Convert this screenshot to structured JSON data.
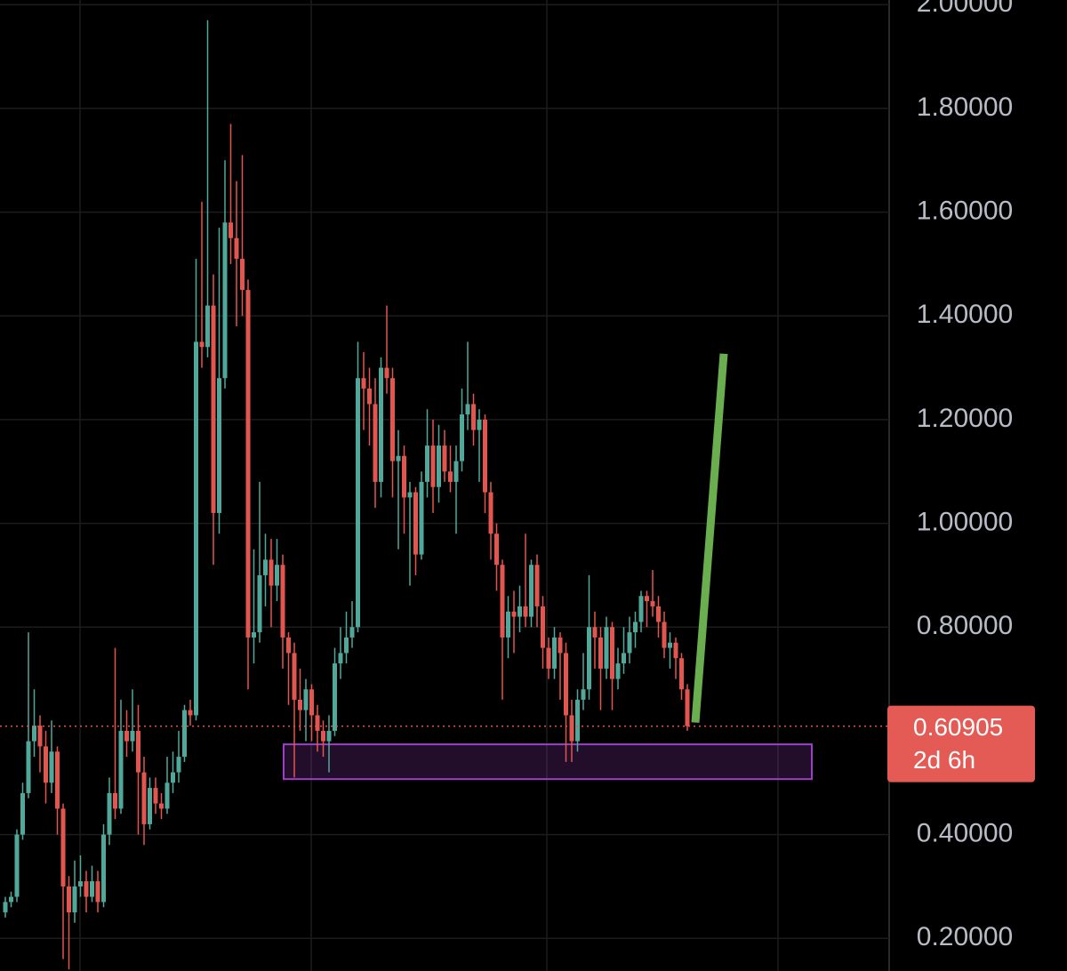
{
  "chart_data": {
    "type": "candlestick",
    "up_color": "#4fa89a",
    "down_color": "#e3554f",
    "grid": true,
    "ylim": [
      0.137,
      2.009
    ],
    "yticks": [
      {
        "value": 0.2,
        "label": "0.20000"
      },
      {
        "value": 0.4,
        "label": "0.40000"
      },
      {
        "value": 0.8,
        "label": "0.80000"
      },
      {
        "value": 1.0,
        "label": "1.00000"
      },
      {
        "value": 1.2,
        "label": "1.20000"
      },
      {
        "value": 1.4,
        "label": "1.40000"
      },
      {
        "value": 1.6,
        "label": "1.60000"
      },
      {
        "value": 1.8,
        "label": "1.80000"
      },
      {
        "value": 2.0,
        "label": "2.00000"
      }
    ],
    "last_price": {
      "value": 0.60905,
      "label": "0.60905"
    },
    "countdown": "2d 6h",
    "zone": {
      "low": 0.507,
      "high": 0.574,
      "color": "#9b3fc4"
    },
    "trend_line": {
      "start": 0.616,
      "end": 1.327,
      "color": "#6aae4f"
    },
    "open": [
      0.25,
      0.27,
      0.28,
      0.4,
      0.48,
      0.58,
      0.61,
      0.57,
      0.5,
      0.56,
      0.45,
      0.3,
      0.25,
      0.3,
      0.31,
      0.28,
      0.31,
      0.27,
      0.4,
      0.48,
      0.45,
      0.6,
      0.58,
      0.6,
      0.52,
      0.42,
      0.49,
      0.46,
      0.45,
      0.5,
      0.52,
      0.55,
      0.64,
      0.63,
      1.35,
      1.34,
      1.42,
      1.02,
      1.28,
      1.58,
      1.55,
      1.51,
      1.45,
      0.78,
      0.79,
      0.9,
      0.93,
      0.88,
      0.92,
      0.78,
      0.75,
      0.66,
      0.64,
      0.68,
      0.63,
      0.6,
      0.58,
      0.6,
      0.73,
      0.75,
      0.78,
      0.8,
      1.28,
      1.26,
      1.23,
      1.08,
      1.3,
      1.28,
      1.12,
      1.13,
      1.05,
      1.06,
      0.94,
      1.08,
      1.15,
      1.07,
      1.15,
      1.1,
      1.08,
      1.12,
      1.21,
      1.23,
      1.18,
      1.2,
      1.06,
      0.98,
      0.92,
      0.78,
      0.83,
      0.82,
      0.84,
      0.82,
      0.92,
      0.84,
      0.76,
      0.72,
      0.78,
      0.75,
      0.63,
      0.58,
      0.66,
      0.68,
      0.8,
      0.78,
      0.72,
      0.8,
      0.7,
      0.73,
      0.75,
      0.79,
      0.81,
      0.86,
      0.85,
      0.84,
      0.81,
      0.76,
      0.77,
      0.74,
      0.68
    ],
    "high": [
      0.28,
      0.29,
      0.41,
      0.5,
      0.79,
      0.68,
      0.63,
      0.6,
      0.62,
      0.57,
      0.46,
      0.32,
      0.35,
      0.36,
      0.33,
      0.34,
      0.33,
      0.42,
      0.51,
      0.76,
      0.66,
      0.64,
      0.68,
      0.65,
      0.55,
      0.51,
      0.51,
      0.48,
      0.55,
      0.56,
      0.6,
      0.65,
      0.66,
      1.51,
      1.62,
      1.97,
      1.48,
      1.57,
      1.7,
      1.77,
      1.66,
      1.71,
      1.47,
      0.95,
      1.08,
      0.98,
      0.97,
      0.97,
      0.94,
      0.79,
      0.77,
      0.72,
      0.7,
      0.69,
      0.65,
      0.62,
      0.63,
      0.76,
      0.8,
      0.83,
      0.85,
      1.35,
      1.33,
      1.3,
      1.28,
      1.32,
      1.42,
      1.3,
      1.18,
      1.15,
      1.08,
      1.07,
      1.1,
      1.22,
      1.2,
      1.19,
      1.18,
      1.15,
      1.15,
      1.26,
      1.35,
      1.25,
      1.22,
      1.21,
      1.08,
      1.0,
      0.93,
      0.86,
      0.87,
      0.88,
      0.98,
      0.93,
      0.94,
      0.86,
      0.78,
      0.8,
      0.79,
      0.77,
      0.66,
      0.68,
      0.75,
      0.9,
      0.83,
      0.8,
      0.82,
      0.81,
      0.76,
      0.8,
      0.82,
      0.83,
      0.87,
      0.87,
      0.91,
      0.86,
      0.83,
      0.79,
      0.78,
      0.75,
      0.69
    ],
    "low": [
      0.24,
      0.26,
      0.27,
      0.39,
      0.47,
      0.55,
      0.52,
      0.46,
      0.48,
      0.4,
      0.16,
      0.14,
      0.23,
      0.28,
      0.25,
      0.27,
      0.25,
      0.26,
      0.38,
      0.43,
      0.44,
      0.55,
      0.56,
      0.4,
      0.38,
      0.41,
      0.44,
      0.43,
      0.44,
      0.48,
      0.5,
      0.54,
      0.61,
      0.62,
      1.3,
      1.32,
      0.92,
      0.98,
      1.26,
      1.5,
      1.38,
      1.4,
      0.68,
      0.73,
      0.77,
      0.84,
      0.8,
      0.85,
      0.72,
      0.65,
      0.51,
      0.6,
      0.58,
      0.58,
      0.56,
      0.55,
      0.52,
      0.59,
      0.7,
      0.73,
      0.76,
      0.79,
      1.18,
      1.15,
      1.03,
      1.05,
      1.25,
      1.05,
      0.95,
      0.98,
      0.88,
      0.9,
      0.93,
      1.05,
      1.02,
      1.04,
      1.08,
      1.06,
      0.98,
      1.1,
      1.18,
      1.15,
      1.08,
      1.02,
      0.93,
      0.87,
      0.66,
      0.74,
      0.75,
      0.79,
      0.8,
      0.8,
      0.8,
      0.72,
      0.7,
      0.7,
      0.66,
      0.54,
      0.54,
      0.56,
      0.64,
      0.66,
      0.72,
      0.64,
      0.7,
      0.64,
      0.68,
      0.71,
      0.73,
      0.76,
      0.79,
      0.8,
      0.82,
      0.78,
      0.74,
      0.72,
      0.7,
      0.66,
      0.6
    ],
    "close": [
      0.27,
      0.28,
      0.4,
      0.48,
      0.58,
      0.61,
      0.57,
      0.5,
      0.56,
      0.45,
      0.3,
      0.25,
      0.3,
      0.31,
      0.28,
      0.31,
      0.27,
      0.4,
      0.48,
      0.45,
      0.6,
      0.58,
      0.6,
      0.52,
      0.42,
      0.49,
      0.46,
      0.45,
      0.5,
      0.52,
      0.55,
      0.64,
      0.63,
      1.35,
      1.34,
      1.42,
      1.02,
      1.28,
      1.58,
      1.55,
      1.51,
      1.45,
      0.78,
      0.79,
      0.9,
      0.93,
      0.88,
      0.92,
      0.78,
      0.75,
      0.66,
      0.64,
      0.68,
      0.63,
      0.6,
      0.58,
      0.6,
      0.73,
      0.75,
      0.78,
      0.8,
      1.28,
      1.26,
      1.23,
      1.08,
      1.3,
      1.28,
      1.12,
      1.13,
      1.05,
      1.06,
      0.94,
      1.08,
      1.15,
      1.07,
      1.15,
      1.1,
      1.08,
      1.12,
      1.21,
      1.23,
      1.18,
      1.2,
      1.06,
      0.98,
      0.92,
      0.78,
      0.83,
      0.82,
      0.84,
      0.82,
      0.92,
      0.84,
      0.76,
      0.72,
      0.78,
      0.75,
      0.63,
      0.58,
      0.66,
      0.68,
      0.8,
      0.78,
      0.72,
      0.8,
      0.7,
      0.73,
      0.75,
      0.79,
      0.81,
      0.86,
      0.85,
      0.84,
      0.81,
      0.76,
      0.77,
      0.74,
      0.68,
      0.60905
    ]
  }
}
